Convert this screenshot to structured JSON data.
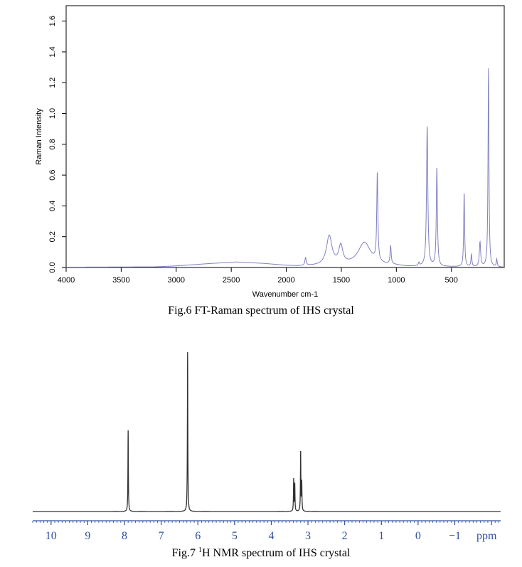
{
  "chart_data": [
    {
      "type": "line",
      "title": "",
      "xlabel": "Wavenumber cm-1",
      "ylabel": "Raman Intensity",
      "xlim": [
        4000,
        20
      ],
      "ylim": [
        0,
        1.7
      ],
      "x_ticks": [
        4000,
        3500,
        3000,
        2500,
        2000,
        1500,
        1000,
        500
      ],
      "x_tick_labels": [
        "4000",
        "3500",
        "3000",
        "2500",
        "2000",
        "1500",
        "1000",
        "500"
      ],
      "y_ticks": [
        0,
        0.2,
        0.4,
        0.6,
        0.8,
        1.0,
        1.2,
        1.4,
        1.6
      ],
      "y_tick_labels": [
        "0.0",
        "0.2",
        "0.4",
        "0.6",
        "0.8",
        "1.0",
        "1.2",
        "1.4",
        "1.6"
      ],
      "grid": false,
      "line_color": "#8080c0",
      "baseline": [
        {
          "x": 4000,
          "y": 0.002
        },
        {
          "x": 3200,
          "y": 0.004
        },
        {
          "x": 3000,
          "y": 0.01
        },
        {
          "x": 2700,
          "y": 0.025
        },
        {
          "x": 2450,
          "y": 0.035
        },
        {
          "x": 2200,
          "y": 0.025
        },
        {
          "x": 2000,
          "y": 0.012
        },
        {
          "x": 1900,
          "y": 0.008
        },
        {
          "x": 1500,
          "y": 0.01
        },
        {
          "x": 1000,
          "y": 0.01
        },
        {
          "x": 900,
          "y": 0.004
        },
        {
          "x": 500,
          "y": 0.003
        },
        {
          "x": 20,
          "y": 0.0
        }
      ],
      "peaks": [
        {
          "x": 1825,
          "height": 0.05,
          "width": 7
        },
        {
          "x": 1610,
          "height": 0.19,
          "width": 30
        },
        {
          "x": 1505,
          "height": 0.12,
          "width": 22
        },
        {
          "x": 1290,
          "height": 0.15,
          "width": 70
        },
        {
          "x": 1173,
          "height": 0.57,
          "width": 6
        },
        {
          "x": 1052,
          "height": 0.12,
          "width": 6
        },
        {
          "x": 795,
          "height": 0.02,
          "width": 6
        },
        {
          "x": 720,
          "height": 0.91,
          "width": 7
        },
        {
          "x": 632,
          "height": 0.64,
          "width": 6
        },
        {
          "x": 384,
          "height": 0.48,
          "width": 5
        },
        {
          "x": 318,
          "height": 0.08,
          "width": 5
        },
        {
          "x": 240,
          "height": 0.16,
          "width": 7
        },
        {
          "x": 163,
          "height": 1.29,
          "width": 5
        },
        {
          "x": 88,
          "height": 0.05,
          "width": 5
        }
      ],
      "caption": "Fig.6 FT-Raman spectrum of IHS crystal"
    },
    {
      "type": "line",
      "title": "",
      "xlabel": "ppm",
      "ylabel": "",
      "xlim": [
        10.5,
        -2.25
      ],
      "ylim": [
        0,
        1.0
      ],
      "x_ticks": [
        10,
        9,
        8,
        7,
        6,
        5,
        4,
        3,
        2,
        1,
        0,
        -1
      ],
      "x_tick_labels": [
        "10",
        "9",
        "8",
        "7",
        "6",
        "5",
        "4",
        "3",
        "2",
        "1",
        "0",
        "−1"
      ],
      "grid": false,
      "line_color": "#333333",
      "axis_color": "#2e4fa0",
      "peaks": [
        {
          "x": 7.9,
          "height": 0.51
        },
        {
          "x": 6.28,
          "height": 1.0
        },
        {
          "x": 3.39,
          "height": 0.2
        },
        {
          "x": 3.36,
          "height": 0.17
        },
        {
          "x": 3.2,
          "height": 0.37
        },
        {
          "x": 3.17,
          "height": 0.18
        }
      ],
      "caption_main": "Fig.7 ",
      "caption_sup": "1",
      "caption_rest": "H NMR spectrum of IHS crystal"
    }
  ]
}
